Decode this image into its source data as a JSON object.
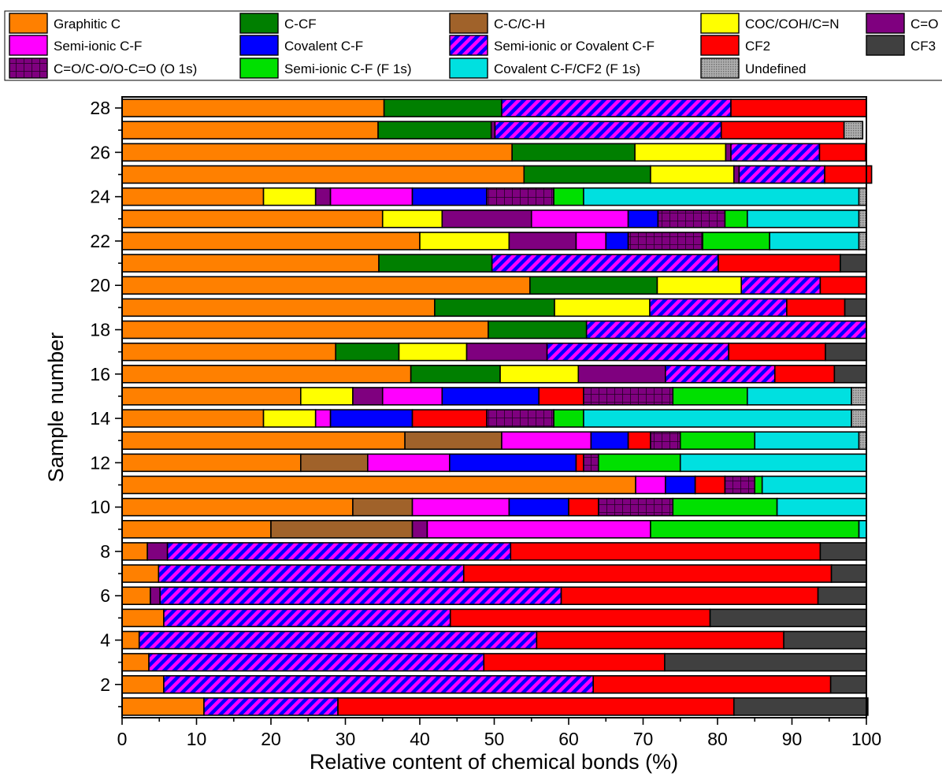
{
  "chart_data": {
    "type": "bar",
    "orientation": "horizontal",
    "stacked": true,
    "title": "",
    "xlabel": "Relative content of chemical bonds (%)",
    "ylabel": "Sample number",
    "xlim": [
      0,
      100
    ],
    "ylim": [
      0.5,
      28.5
    ],
    "x_ticks": [
      0,
      10,
      20,
      30,
      40,
      50,
      60,
      70,
      80,
      90,
      100
    ],
    "y_ticks": [
      2,
      4,
      6,
      8,
      10,
      12,
      14,
      16,
      18,
      20,
      22,
      24,
      26,
      28
    ],
    "grid": false,
    "legend_position": "top",
    "categories": [
      1,
      2,
      3,
      4,
      5,
      6,
      7,
      8,
      9,
      10,
      11,
      12,
      13,
      14,
      15,
      16,
      17,
      18,
      19,
      20,
      21,
      22,
      23,
      24,
      25,
      26,
      27,
      28
    ],
    "series": [
      {
        "key": "graphitic",
        "name": "Graphitic C",
        "color": "#FF8000",
        "pattern": "solid",
        "values": [
          11,
          5.6,
          3.6,
          2.3,
          5.6,
          3.8,
          4.9,
          3.4,
          20,
          31,
          69,
          24,
          38,
          19,
          24,
          38.8,
          28.7,
          49.2,
          42,
          54.8,
          34.5,
          40,
          35,
          19,
          54,
          52.4,
          34.4,
          35.2
        ]
      },
      {
        "key": "ccf",
        "name": "C-CF",
        "color": "#007F00",
        "pattern": "solid",
        "values": [
          0,
          0,
          0,
          0,
          0,
          0,
          0,
          0,
          0,
          0,
          0,
          0,
          0,
          0,
          0,
          12,
          8.5,
          13.2,
          16.1,
          17.1,
          15.2,
          0,
          0,
          0,
          17,
          16.5,
          15.2,
          15.8
        ]
      },
      {
        "key": "cc",
        "name": "C-C/C-H",
        "color": "#A0622A",
        "pattern": "solid",
        "values": [
          0,
          0,
          0,
          0,
          0,
          0,
          0,
          0,
          19,
          8,
          0,
          9,
          13,
          0,
          0,
          0,
          0,
          0,
          0,
          0,
          0,
          0,
          0,
          0,
          0,
          0,
          0,
          0
        ]
      },
      {
        "key": "coc",
        "name": "COC/COH/C=N",
        "color": "#FFFF00",
        "pattern": "solid",
        "values": [
          0,
          0,
          0,
          0,
          0,
          0,
          0,
          0,
          0,
          0,
          0,
          0,
          0,
          7,
          7,
          10.5,
          9.1,
          0,
          12.8,
          11.3,
          0,
          12,
          8,
          7,
          11.2,
          12.2,
          0,
          0
        ]
      },
      {
        "key": "co",
        "name": "C=O",
        "color": "#7F007F",
        "pattern": "solid",
        "values": [
          0,
          0,
          0,
          0,
          0,
          1.3,
          0,
          2.7,
          2,
          0,
          0,
          0,
          0,
          0,
          4,
          11.7,
          10.8,
          0,
          0,
          0,
          0,
          9,
          12,
          2,
          0.7,
          0.7,
          0.5,
          0
        ]
      },
      {
        "key": "semiionic",
        "name": "Semi-ionic C-F",
        "color": "#FF00FF",
        "pattern": "solid",
        "values": [
          0,
          0,
          0,
          0,
          0,
          0,
          0,
          0,
          30,
          13,
          4,
          11,
          12,
          2,
          8,
          0,
          0,
          0,
          0,
          0,
          0,
          4,
          13,
          11,
          0,
          0,
          0,
          0
        ]
      },
      {
        "key": "covalent",
        "name": "Covalent C-F",
        "color": "#0000FF",
        "pattern": "solid",
        "values": [
          0,
          0,
          0,
          0,
          0,
          0,
          0,
          0,
          0,
          8,
          4,
          17,
          5,
          11,
          13,
          0,
          0,
          0,
          0,
          0,
          0,
          3,
          4,
          10,
          0,
          0,
          0,
          0
        ]
      },
      {
        "key": "semicov",
        "name": "Semi-ionic or Covalent C-F",
        "color": "#FF00FF",
        "pattern": "stripe",
        "values": [
          18,
          57.7,
          45,
          53.4,
          38.5,
          53.9,
          41,
          46.1,
          0,
          0,
          0,
          0,
          0,
          0,
          0,
          14.7,
          24.4,
          37.6,
          18.4,
          10.6,
          30.4,
          0,
          0,
          0,
          11.5,
          11.9,
          30.4,
          30.8
        ]
      },
      {
        "key": "cf2",
        "name": "CF2",
        "color": "#FF0000",
        "pattern": "solid",
        "values": [
          53.2,
          31.9,
          24.3,
          33.2,
          34.9,
          34.5,
          49.4,
          41.6,
          0,
          4,
          4,
          1,
          3,
          10,
          6,
          8,
          13,
          0,
          7.8,
          6.2,
          16.4,
          0,
          0,
          0,
          6.3,
          6.2,
          16.5,
          18.2
        ]
      },
      {
        "key": "cf3",
        "name": "CF3",
        "color": "#404040",
        "pattern": "solid",
        "values": [
          18,
          4.8,
          27.1,
          11.1,
          21,
          6.5,
          4.7,
          6.2,
          0,
          0,
          0,
          0,
          0,
          0,
          0,
          4.3,
          5.5,
          0,
          2.9,
          0,
          3.5,
          0,
          0,
          0,
          0,
          0,
          0,
          0
        ]
      },
      {
        "key": "co_o1s",
        "name": "C=O/C-O/O-C=O (O 1s)",
        "color": "#7F007F",
        "pattern": "grid",
        "values": [
          0,
          0,
          0,
          0,
          0,
          0,
          0,
          0,
          0,
          10,
          4,
          2,
          4,
          9,
          12,
          0,
          0,
          0,
          0,
          0,
          0,
          10,
          9,
          9,
          0,
          0,
          0,
          0
        ]
      },
      {
        "key": "semiionic_f1s",
        "name": "Semi-ionic C-F (F 1s)",
        "color": "#00E000",
        "pattern": "solid",
        "values": [
          0,
          0,
          0,
          0,
          0,
          0,
          0,
          0,
          28,
          14,
          1,
          11,
          10,
          4,
          10,
          0,
          0,
          0,
          0,
          0,
          0,
          9,
          3,
          4,
          0,
          0,
          0,
          0
        ]
      },
      {
        "key": "covalent_f1s",
        "name": "Covalent C-F/CF2 (F 1s)",
        "color": "#00E0E0",
        "pattern": "solid",
        "values": [
          0,
          0,
          0,
          0,
          0,
          0,
          0,
          0,
          1,
          12,
          14,
          25,
          14,
          36,
          14,
          0,
          0,
          0,
          0,
          0,
          0,
          12,
          15,
          37,
          0,
          0,
          0,
          0
        ]
      },
      {
        "key": "undefined",
        "name": "Undefined",
        "color": "#A0A0A0",
        "pattern": "dots",
        "values": [
          0,
          0,
          0,
          0,
          0,
          0,
          0,
          0,
          0,
          0,
          0,
          0,
          1,
          2,
          2,
          0,
          0,
          0,
          0,
          0,
          0,
          1,
          1,
          1,
          0,
          0,
          2.5,
          0
        ]
      }
    ]
  }
}
